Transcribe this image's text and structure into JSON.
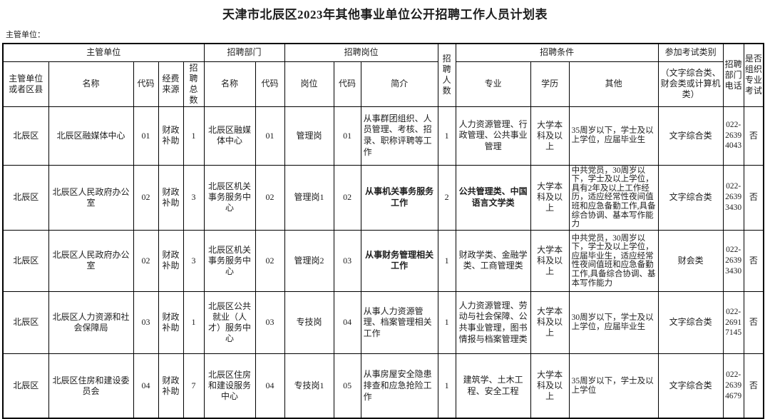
{
  "page": {
    "title": "天津市北辰区2023年其他事业单位公开招聘工作人员计划表",
    "supervisor_label": "主管单位："
  },
  "table": {
    "group_headers": {
      "supervisor": "主管单位",
      "department": "招聘部门",
      "position": "招聘岗位",
      "conditions": "招聘条件",
      "exam_type": "参加考试类别",
      "exam_type_note": "（文字综合类、财会类或计算机类）"
    },
    "column_headers": {
      "district": "主管单位或者区县",
      "org_name": "名称",
      "org_code": "代码",
      "funding": "经费来源",
      "total": "招聘总数",
      "dept_name": "名称",
      "dept_code": "代码",
      "post": "岗位",
      "post_code": "代码",
      "intro": "简介",
      "count": "招聘人数",
      "major": "专业",
      "degree": "学历",
      "other": "其他",
      "phone": "招聘部门电话",
      "special_exam": "是否组织专业考试"
    },
    "rows": [
      {
        "district": "北辰区",
        "org_name": "北辰区融媒体中心",
        "org_code": "01",
        "funding": "财政补助",
        "total": "1",
        "dept_name": "北辰区融媒体中心",
        "dept_code": "01",
        "post": "管理岗",
        "post_code": "01",
        "intro": "从事群团组织、人员管理、考核、招录、职称评聘等工作",
        "count": "1",
        "major": "人力资源管理、行政管理、公共事业管理",
        "degree": "大学本科及以上",
        "other": "35周岁以下，学士及以上学位，应届毕业生",
        "exam": "文字综合类",
        "phone": "022-26394043",
        "special_exam": "否"
      },
      {
        "district": "北辰区",
        "org_name": "北辰区人民政府办公室",
        "org_code": "02",
        "funding": "财政补助",
        "total": "3",
        "dept_name": "北辰区机关事务服务中心",
        "dept_code": "02",
        "post": "管理岗1",
        "post_code": "02",
        "intro": "从事机关事务服务工作",
        "count": "2",
        "major": "公共管理类、中国语言文学类",
        "degree": "大学本科及以上",
        "other": "中共党员，30周岁以下，学士及以上学位，具有2年及以上工作经历，适应经常性夜间值班和应急备勤工作,具备综合协调、基本写作能力",
        "exam": "文字综合类",
        "phone": "022-26393430",
        "special_exam": "否"
      },
      {
        "district": "北辰区",
        "org_name": "北辰区人民政府办公室",
        "org_code": "02",
        "funding": "财政补助",
        "total": "3",
        "dept_name": "北辰区机关事务服务中心",
        "dept_code": "02",
        "post": "管理岗2",
        "post_code": "03",
        "intro": "从事财务管理相关工作",
        "count": "1",
        "major": "财政学类、金融学类、工商管理类",
        "degree": "大学本科及以上",
        "other": "中共党员，30周岁以下，学士及以上学位，应届毕业生，适应经常性夜间值班和应急备勤工作,具备综合协调、基本写作能力",
        "exam": "财会类",
        "phone": "022-26393430",
        "special_exam": "否"
      },
      {
        "district": "北辰区",
        "org_name": "北辰区人力资源和社会保障局",
        "org_code": "03",
        "funding": "财政补助",
        "total": "1",
        "dept_name": "北辰区公共就业（人才）服务中心",
        "dept_code": "03",
        "post": "专技岗",
        "post_code": "04",
        "intro": "从事人力资源管理、档案管理相关工作",
        "count": "1",
        "major": "人力资源管理、劳动与社会保障、公共事业管理，图书情报与档案管理类",
        "degree": "大学本科及以上",
        "other": "30周岁以下，学士及以上学位，应届毕业生",
        "exam": "文字综合类",
        "phone": "022-26917145",
        "special_exam": "否"
      },
      {
        "district": "北辰区",
        "org_name": "北辰区住房和建设委员会",
        "org_code": "04",
        "funding": "财政补助",
        "total": "7",
        "dept_name": "北辰区住房和建设服务中心",
        "dept_code": "04",
        "post": "专技岗1",
        "post_code": "05",
        "intro": "从事房屋安全隐患排查和应急抢险工作",
        "count": "1",
        "major": "建筑学、土木工程、安全工程",
        "degree": "大学本科及以上",
        "other": "35周岁以下，学士及以上学位",
        "exam": "文字综合类",
        "phone": "022-26394679",
        "special_exam": "否"
      }
    ]
  }
}
